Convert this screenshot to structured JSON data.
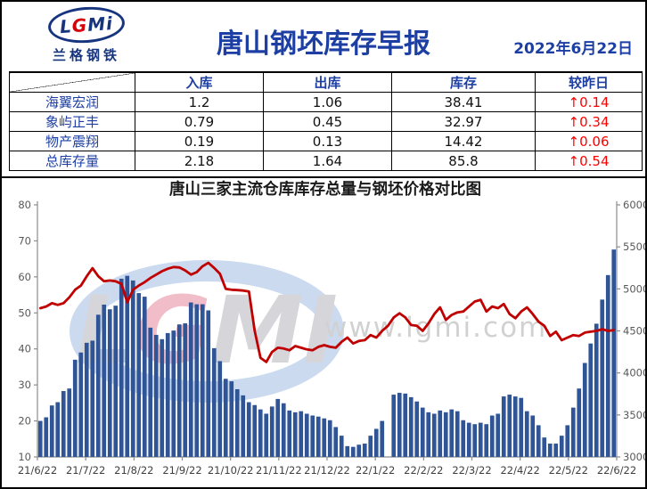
{
  "header": {
    "logo_letters_l": "L",
    "logo_letters_g": "G",
    "logo_letters_mi": "Mi",
    "logo_subtitle": "兰格钢铁",
    "title": "唐山钢坯库存早报",
    "date": "2022年6月22日"
  },
  "table": {
    "columns": [
      "入库",
      "出库",
      "库存",
      "较昨日"
    ],
    "rows": [
      {
        "name": "海翼宏润",
        "in": "1.2",
        "out": "1.06",
        "stock": "38.41",
        "change": "↑0.14"
      },
      {
        "name": "象屿正丰",
        "in": "0.79",
        "out": "0.45",
        "stock": "32.97",
        "change": "↑0.34"
      },
      {
        "name": "物产震翔",
        "in": "0.19",
        "out": "0.13",
        "stock": "14.42",
        "change": "↑0.06"
      },
      {
        "name": "总库存量",
        "in": "2.18",
        "out": "1.64",
        "stock": "85.8",
        "change": "↑0.54"
      }
    ]
  },
  "chart_data": {
    "type": "bar",
    "title": "唐山三家主流仓库库存总量与钢坯价格对比图",
    "x_tick_labels": [
      "21/6/22",
      "21/7/22",
      "21/8/22",
      "21/9/22",
      "21/10/22",
      "21/11/22",
      "21/12/22",
      "22/1/22",
      "22/2/22",
      "22/3/22",
      "22/4/22",
      "22/5/22",
      "22/6/22"
    ],
    "left_axis": {
      "min": 10,
      "max": 80,
      "step": 10
    },
    "right_axis": {
      "min": 3000,
      "max": 6000,
      "step": 500
    },
    "series": [
      {
        "name": "库存总量",
        "type": "bar",
        "axis": "left",
        "color": "#2f5597",
        "values": [
          20.0,
          21.0,
          24.3,
          25.2,
          28.3,
          29.0,
          37.0,
          39.0,
          41.7,
          42.3,
          49.5,
          52.3,
          51.0,
          52.0,
          59.5,
          60.3,
          59.0,
          55.5,
          54.5,
          45.9,
          43.9,
          42.7,
          44.4,
          45.1,
          46.8,
          47.1,
          52.9,
          52.4,
          52.4,
          50.7,
          40.2,
          36.6,
          31.7,
          31.0,
          28.8,
          27.1,
          25.2,
          24.4,
          23.2,
          22.0,
          24.0,
          26.1,
          24.9,
          22.9,
          22.4,
          22.7,
          22.0,
          21.5,
          21.2,
          20.7,
          20.2,
          18.3,
          15.9,
          13.0,
          12.8,
          13.4,
          13.7,
          15.9,
          17.8,
          20.0,
          null,
          27.3,
          27.8,
          27.6,
          26.6,
          25.4,
          23.7,
          22.4,
          22.0,
          22.9,
          22.4,
          23.2,
          22.7,
          20.2,
          19.5,
          19.1,
          19.5,
          19.1,
          21.5,
          22.0,
          26.8,
          27.3,
          26.8,
          26.4,
          22.7,
          21.5,
          18.8,
          15.4,
          13.7,
          13.7,
          15.9,
          18.8,
          23.7,
          29.0,
          36.1,
          41.5,
          47.0,
          53.7,
          60.5,
          67.6
        ]
      },
      {
        "name": "钢坯价格",
        "type": "line",
        "axis": "right",
        "color": "#c00000",
        "values": [
          4770,
          4790,
          4830,
          4810,
          4830,
          4900,
          4990,
          5040,
          5150,
          5246,
          5150,
          5090,
          5100,
          5090,
          5060,
          4840,
          4990,
          5040,
          5080,
          5130,
          5170,
          5210,
          5240,
          5260,
          5255,
          5220,
          5170,
          5200,
          5270,
          5310,
          5250,
          5180,
          5000,
          4990,
          4985,
          4980,
          4970,
          4500,
          4180,
          4130,
          4250,
          4300,
          4290,
          4270,
          4320,
          4300,
          4280,
          4270,
          4310,
          4330,
          4310,
          4300,
          4370,
          4420,
          4350,
          4380,
          4390,
          4450,
          4420,
          4500,
          4560,
          4660,
          4710,
          4660,
          4570,
          4560,
          4500,
          4590,
          4700,
          4780,
          4630,
          4690,
          4720,
          4730,
          4790,
          4850,
          4870,
          4730,
          4790,
          4770,
          4820,
          4700,
          4650,
          4730,
          4780,
          4700,
          4610,
          4560,
          4440,
          4490,
          4390,
          4420,
          4450,
          4440,
          4480,
          4490,
          4500,
          4520,
          4500,
          4510
        ]
      }
    ],
    "watermark": {
      "logo_text_l": "L",
      "logo_text_g": "G",
      "logo_text_mi": "MI",
      "url_text": "www.lgmi.com"
    },
    "grid": false,
    "legend": "none"
  }
}
